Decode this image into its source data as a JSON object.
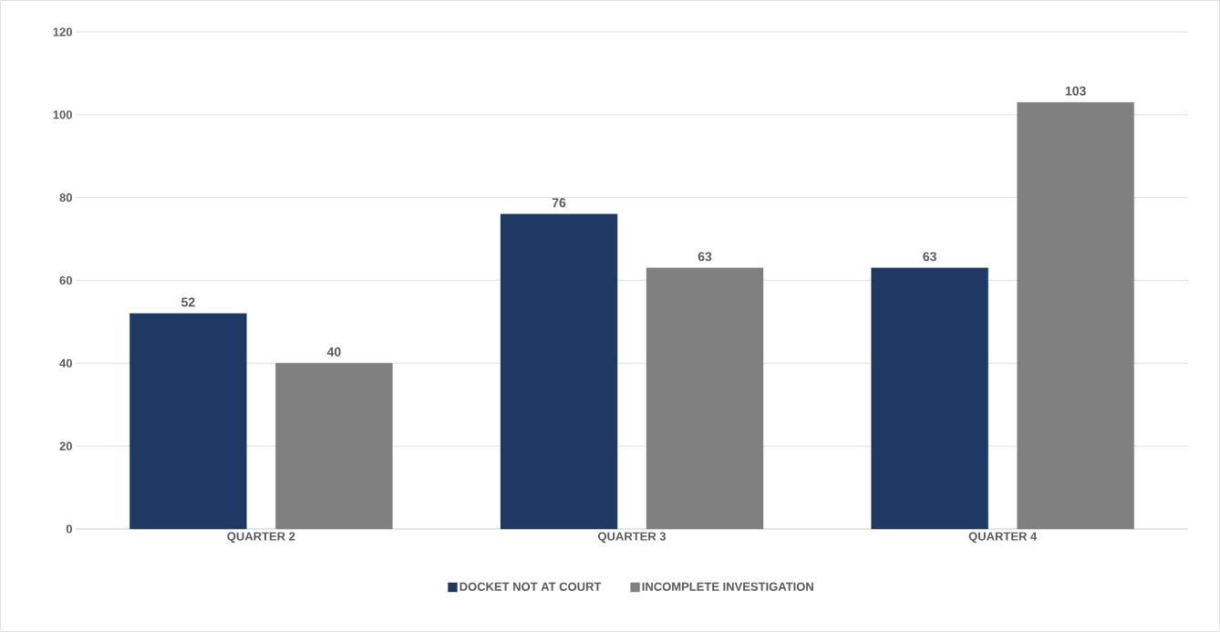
{
  "chart_data": {
    "type": "bar",
    "categories": [
      "QUARTER 2",
      "QUARTER 3",
      "QUARTER 4"
    ],
    "series": [
      {
        "name": "DOCKET NOT AT COURT",
        "color": "#203864",
        "values": [
          52,
          76,
          63
        ]
      },
      {
        "name": "INCOMPLETE INVESTIGATION",
        "color": "#808080",
        "values": [
          40,
          63,
          103
        ]
      }
    ],
    "ylim": [
      0,
      120
    ],
    "yticks": [
      0,
      20,
      40,
      60,
      80,
      100,
      120
    ],
    "grid": "y",
    "legend": "bottom",
    "data_labels": true
  }
}
